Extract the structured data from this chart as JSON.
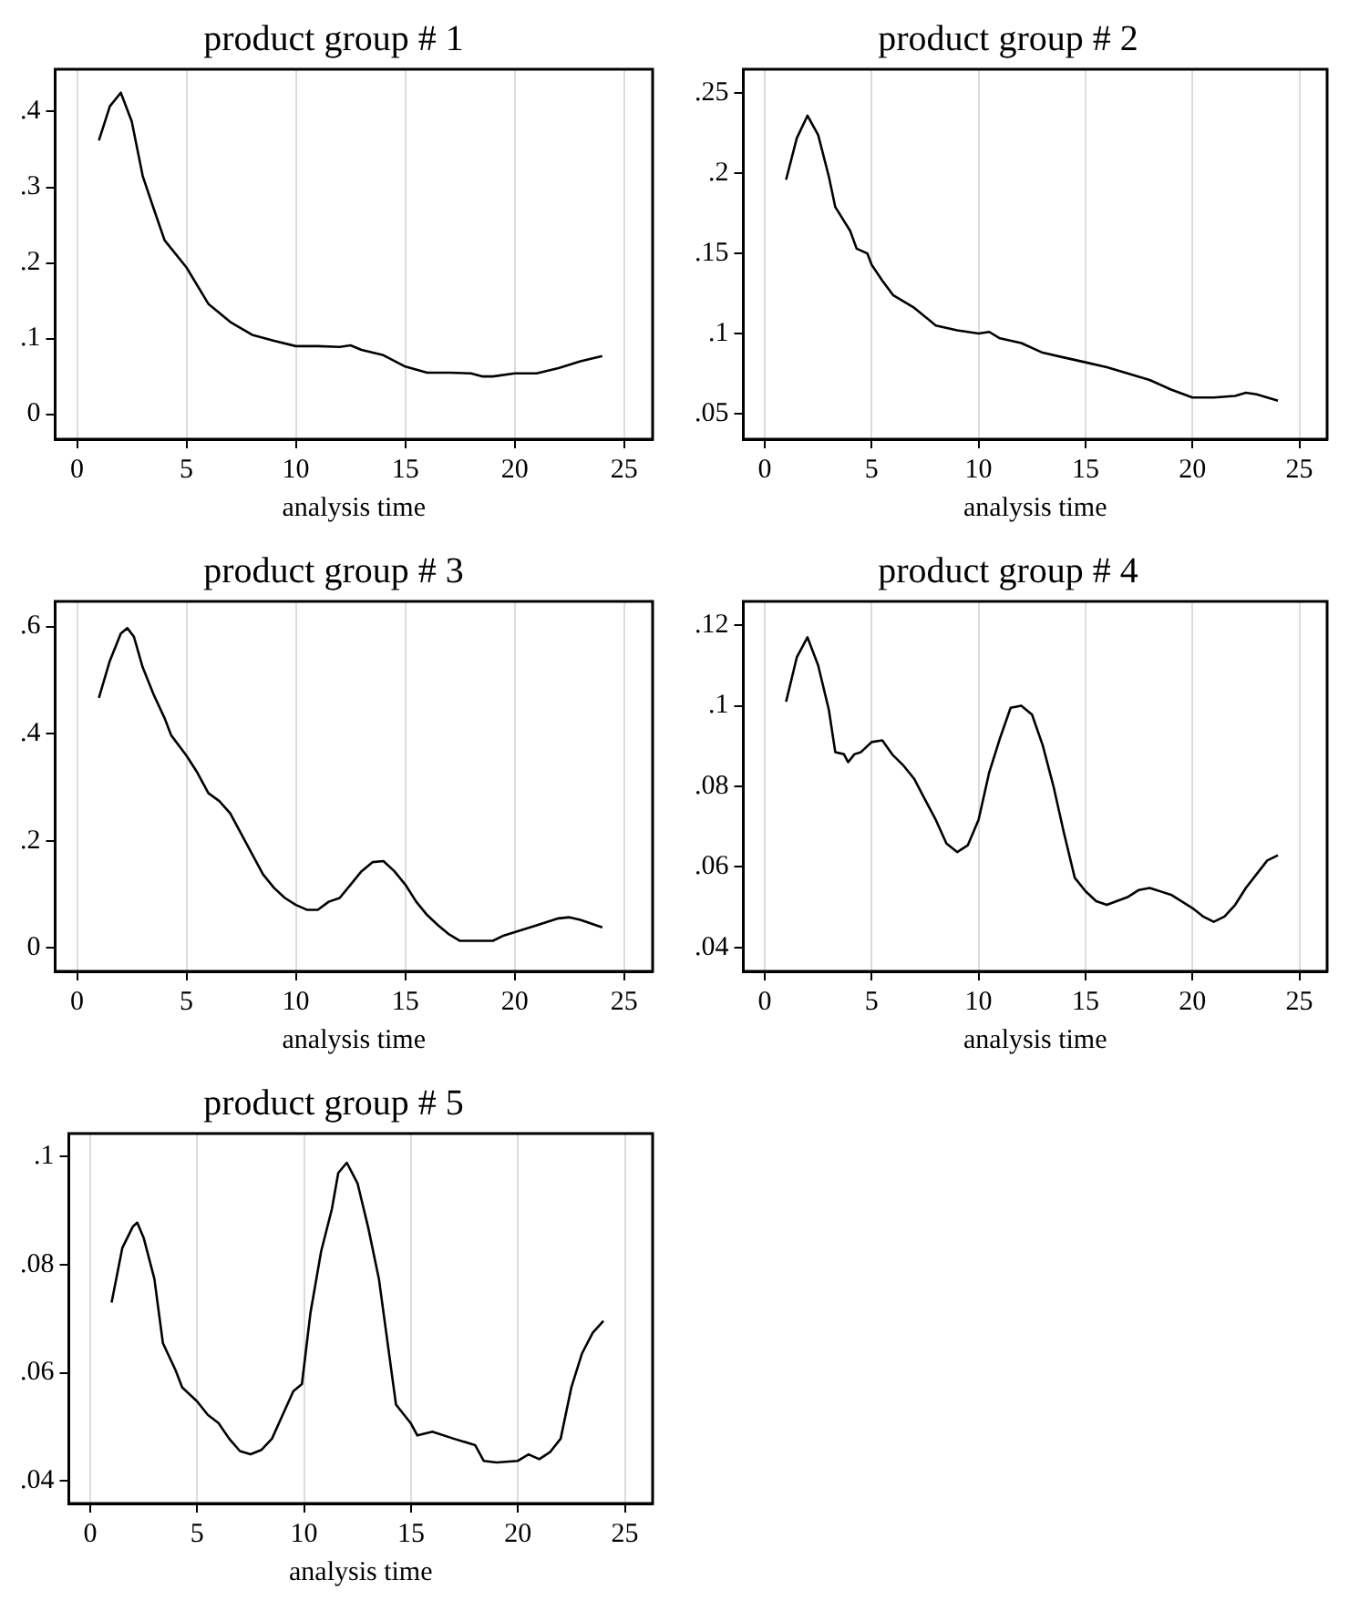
{
  "chart_data": [
    {
      "type": "line",
      "title": "product group # 1",
      "xlabel": "analysis time",
      "color": "#000000",
      "grid": "x",
      "xlim": [
        -1,
        26.3
      ],
      "xticks": [
        0,
        5,
        10,
        15,
        20,
        25
      ],
      "ylim": [
        -0.033,
        0.456
      ],
      "yticks": [
        0,
        {
          "value": 0.1,
          "label": ".1"
        },
        {
          "value": 0.2,
          "label": ".2"
        },
        {
          "value": 0.3,
          "label": ".3"
        },
        {
          "value": 0.4,
          "label": ".4"
        }
      ],
      "x": [
        1,
        1.5,
        2,
        2.5,
        3,
        3.5,
        4,
        5,
        6,
        7,
        8,
        9,
        10,
        11,
        12,
        12.5,
        13,
        14,
        15,
        16,
        17,
        18,
        18.5,
        19,
        20,
        21,
        22,
        23,
        24
      ],
      "values": [
        0.362,
        0.407,
        0.425,
        0.387,
        0.315,
        0.272,
        0.23,
        0.194,
        0.146,
        0.122,
        0.105,
        0.097,
        0.09,
        0.09,
        0.089,
        0.091,
        0.085,
        0.078,
        0.063,
        0.055,
        0.055,
        0.054,
        0.05,
        0.05,
        0.054,
        0.054,
        0.061,
        0.07,
        0.077
      ]
    },
    {
      "type": "line",
      "title": "product group # 2",
      "xlabel": "analysis time",
      "color": "#000000",
      "grid": "x",
      "xlim": [
        -1,
        26.3
      ],
      "xticks": [
        0,
        5,
        10,
        15,
        20,
        25
      ],
      "ylim": [
        0.034,
        0.265
      ],
      "yticks": [
        {
          "value": 0.05,
          "label": ".05"
        },
        {
          "value": 0.1,
          "label": ".1"
        },
        {
          "value": 0.15,
          "label": ".15"
        },
        {
          "value": 0.2,
          "label": ".2"
        },
        {
          "value": 0.25,
          "label": ".25"
        }
      ],
      "x": [
        1,
        1.5,
        2,
        2.5,
        3,
        3.3,
        4,
        4.3,
        4.8,
        5,
        5.5,
        6,
        7,
        8,
        9,
        10,
        10.5,
        11,
        12,
        13,
        14,
        15,
        16,
        17,
        18,
        19,
        20,
        21,
        22,
        22.5,
        23,
        24
      ],
      "values": [
        0.196,
        0.222,
        0.236,
        0.224,
        0.198,
        0.179,
        0.164,
        0.153,
        0.15,
        0.143,
        0.133,
        0.124,
        0.116,
        0.105,
        0.102,
        0.1,
        0.101,
        0.097,
        0.094,
        0.088,
        0.085,
        0.082,
        0.079,
        0.075,
        0.071,
        0.065,
        0.06,
        0.06,
        0.061,
        0.063,
        0.062,
        0.058
      ]
    },
    {
      "type": "line",
      "title": "product group # 3",
      "xlabel": "analysis time",
      "color": "#000000",
      "grid": "x",
      "xlim": [
        -1,
        26.3
      ],
      "xticks": [
        0,
        5,
        10,
        15,
        20,
        25
      ],
      "ylim": [
        -0.044,
        0.647
      ],
      "yticks": [
        0,
        {
          "value": 0.2,
          "label": ".2"
        },
        {
          "value": 0.4,
          "label": ".4"
        },
        {
          "value": 0.6,
          "label": ".6"
        }
      ],
      "x": [
        1,
        1.5,
        2,
        2.3,
        2.6,
        3,
        3.5,
        4,
        4.3,
        5,
        5.5,
        6,
        6.5,
        7,
        8,
        8.5,
        9,
        9.5,
        10,
        10.5,
        11,
        11.5,
        12,
        12.5,
        13,
        13.5,
        14,
        14.5,
        15,
        15.5,
        16,
        16.5,
        17,
        17.5,
        18,
        19,
        19.5,
        20,
        21,
        22,
        22.5,
        23,
        24
      ],
      "values": [
        0.467,
        0.536,
        0.587,
        0.597,
        0.581,
        0.524,
        0.473,
        0.429,
        0.397,
        0.359,
        0.327,
        0.289,
        0.274,
        0.251,
        0.175,
        0.137,
        0.112,
        0.093,
        0.08,
        0.071,
        0.071,
        0.086,
        0.093,
        0.118,
        0.143,
        0.16,
        0.162,
        0.143,
        0.118,
        0.086,
        0.061,
        0.042,
        0.025,
        0.013,
        0.013,
        0.013,
        0.023,
        0.029,
        0.042,
        0.055,
        0.057,
        0.052,
        0.038
      ]
    },
    {
      "type": "line",
      "title": "product group # 4",
      "xlabel": "analysis time",
      "color": "#000000",
      "grid": "x",
      "xlim": [
        -1,
        26.3
      ],
      "xticks": [
        0,
        5,
        10,
        15,
        20,
        25
      ],
      "ylim": [
        0.0341,
        0.1259
      ],
      "yticks": [
        {
          "value": 0.04,
          "label": ".04"
        },
        {
          "value": 0.06,
          "label": ".06"
        },
        {
          "value": 0.08,
          "label": ".08"
        },
        {
          "value": 0.1,
          "label": ".1"
        },
        {
          "value": 0.12,
          "label": ".12"
        }
      ],
      "x": [
        1,
        1.5,
        2,
        2.5,
        3,
        3.3,
        3.7,
        3.9,
        4.2,
        4.5,
        5,
        5.5,
        6,
        6.5,
        7,
        7.5,
        8,
        8.5,
        9,
        9.5,
        10,
        10.5,
        11,
        11.5,
        12,
        12.5,
        13,
        13.5,
        14,
        14.5,
        15,
        15.5,
        16,
        17,
        17.5,
        18,
        19,
        20,
        20.5,
        21,
        21.5,
        22,
        22.5,
        23,
        23.5,
        24
      ],
      "values": [
        0.101,
        0.112,
        0.117,
        0.11,
        0.099,
        0.0885,
        0.088,
        0.086,
        0.088,
        0.0885,
        0.091,
        0.0914,
        0.0877,
        0.0851,
        0.0818,
        0.0767,
        0.0717,
        0.0658,
        0.0637,
        0.0654,
        0.0717,
        0.0835,
        0.0919,
        0.0995,
        0.1,
        0.0978,
        0.0902,
        0.0801,
        0.0683,
        0.0573,
        0.054,
        0.0515,
        0.0506,
        0.0526,
        0.0543,
        0.0548,
        0.0531,
        0.0498,
        0.0477,
        0.0464,
        0.0477,
        0.0506,
        0.0548,
        0.0582,
        0.0616,
        0.0629
      ]
    },
    {
      "type": "line",
      "title": "product group # 5",
      "xlabel": "analysis time",
      "color": "#000000",
      "grid": "x",
      "xlim": [
        -1,
        26.3
      ],
      "xticks": [
        0,
        5,
        10,
        15,
        20,
        25
      ],
      "ylim": [
        0.0358,
        0.1043
      ],
      "yticks": [
        {
          "value": 0.04,
          "label": ".04"
        },
        {
          "value": 0.06,
          "label": ".06"
        },
        {
          "value": 0.08,
          "label": ".08"
        },
        {
          "value": 0.1,
          "label": ".1"
        }
      ],
      "x": [
        1,
        1.5,
        2,
        2.2,
        2.5,
        3,
        3.4,
        4,
        4.3,
        5,
        5.5,
        6,
        6.5,
        7,
        7.5,
        8,
        8.5,
        9,
        9.5,
        9.9,
        10.3,
        10.8,
        11.3,
        11.6,
        12,
        12.5,
        13,
        13.5,
        14.3,
        15,
        15.3,
        16,
        17,
        18,
        18.4,
        19,
        20,
        20.5,
        21,
        21.5,
        22,
        22.5,
        23,
        23.5,
        24
      ],
      "values": [
        0.073,
        0.0831,
        0.0871,
        0.0878,
        0.085,
        0.0774,
        0.0655,
        0.0604,
        0.0573,
        0.0547,
        0.0522,
        0.0507,
        0.0478,
        0.0455,
        0.0449,
        0.0457,
        0.0478,
        0.0522,
        0.0566,
        0.0579,
        0.0711,
        0.0825,
        0.0903,
        0.097,
        0.0989,
        0.0951,
        0.0869,
        0.0774,
        0.0541,
        0.0506,
        0.0484,
        0.0491,
        0.0478,
        0.0466,
        0.0437,
        0.0434,
        0.0437,
        0.0449,
        0.044,
        0.0453,
        0.0478,
        0.0573,
        0.0636,
        0.0674,
        0.0696
      ]
    }
  ]
}
